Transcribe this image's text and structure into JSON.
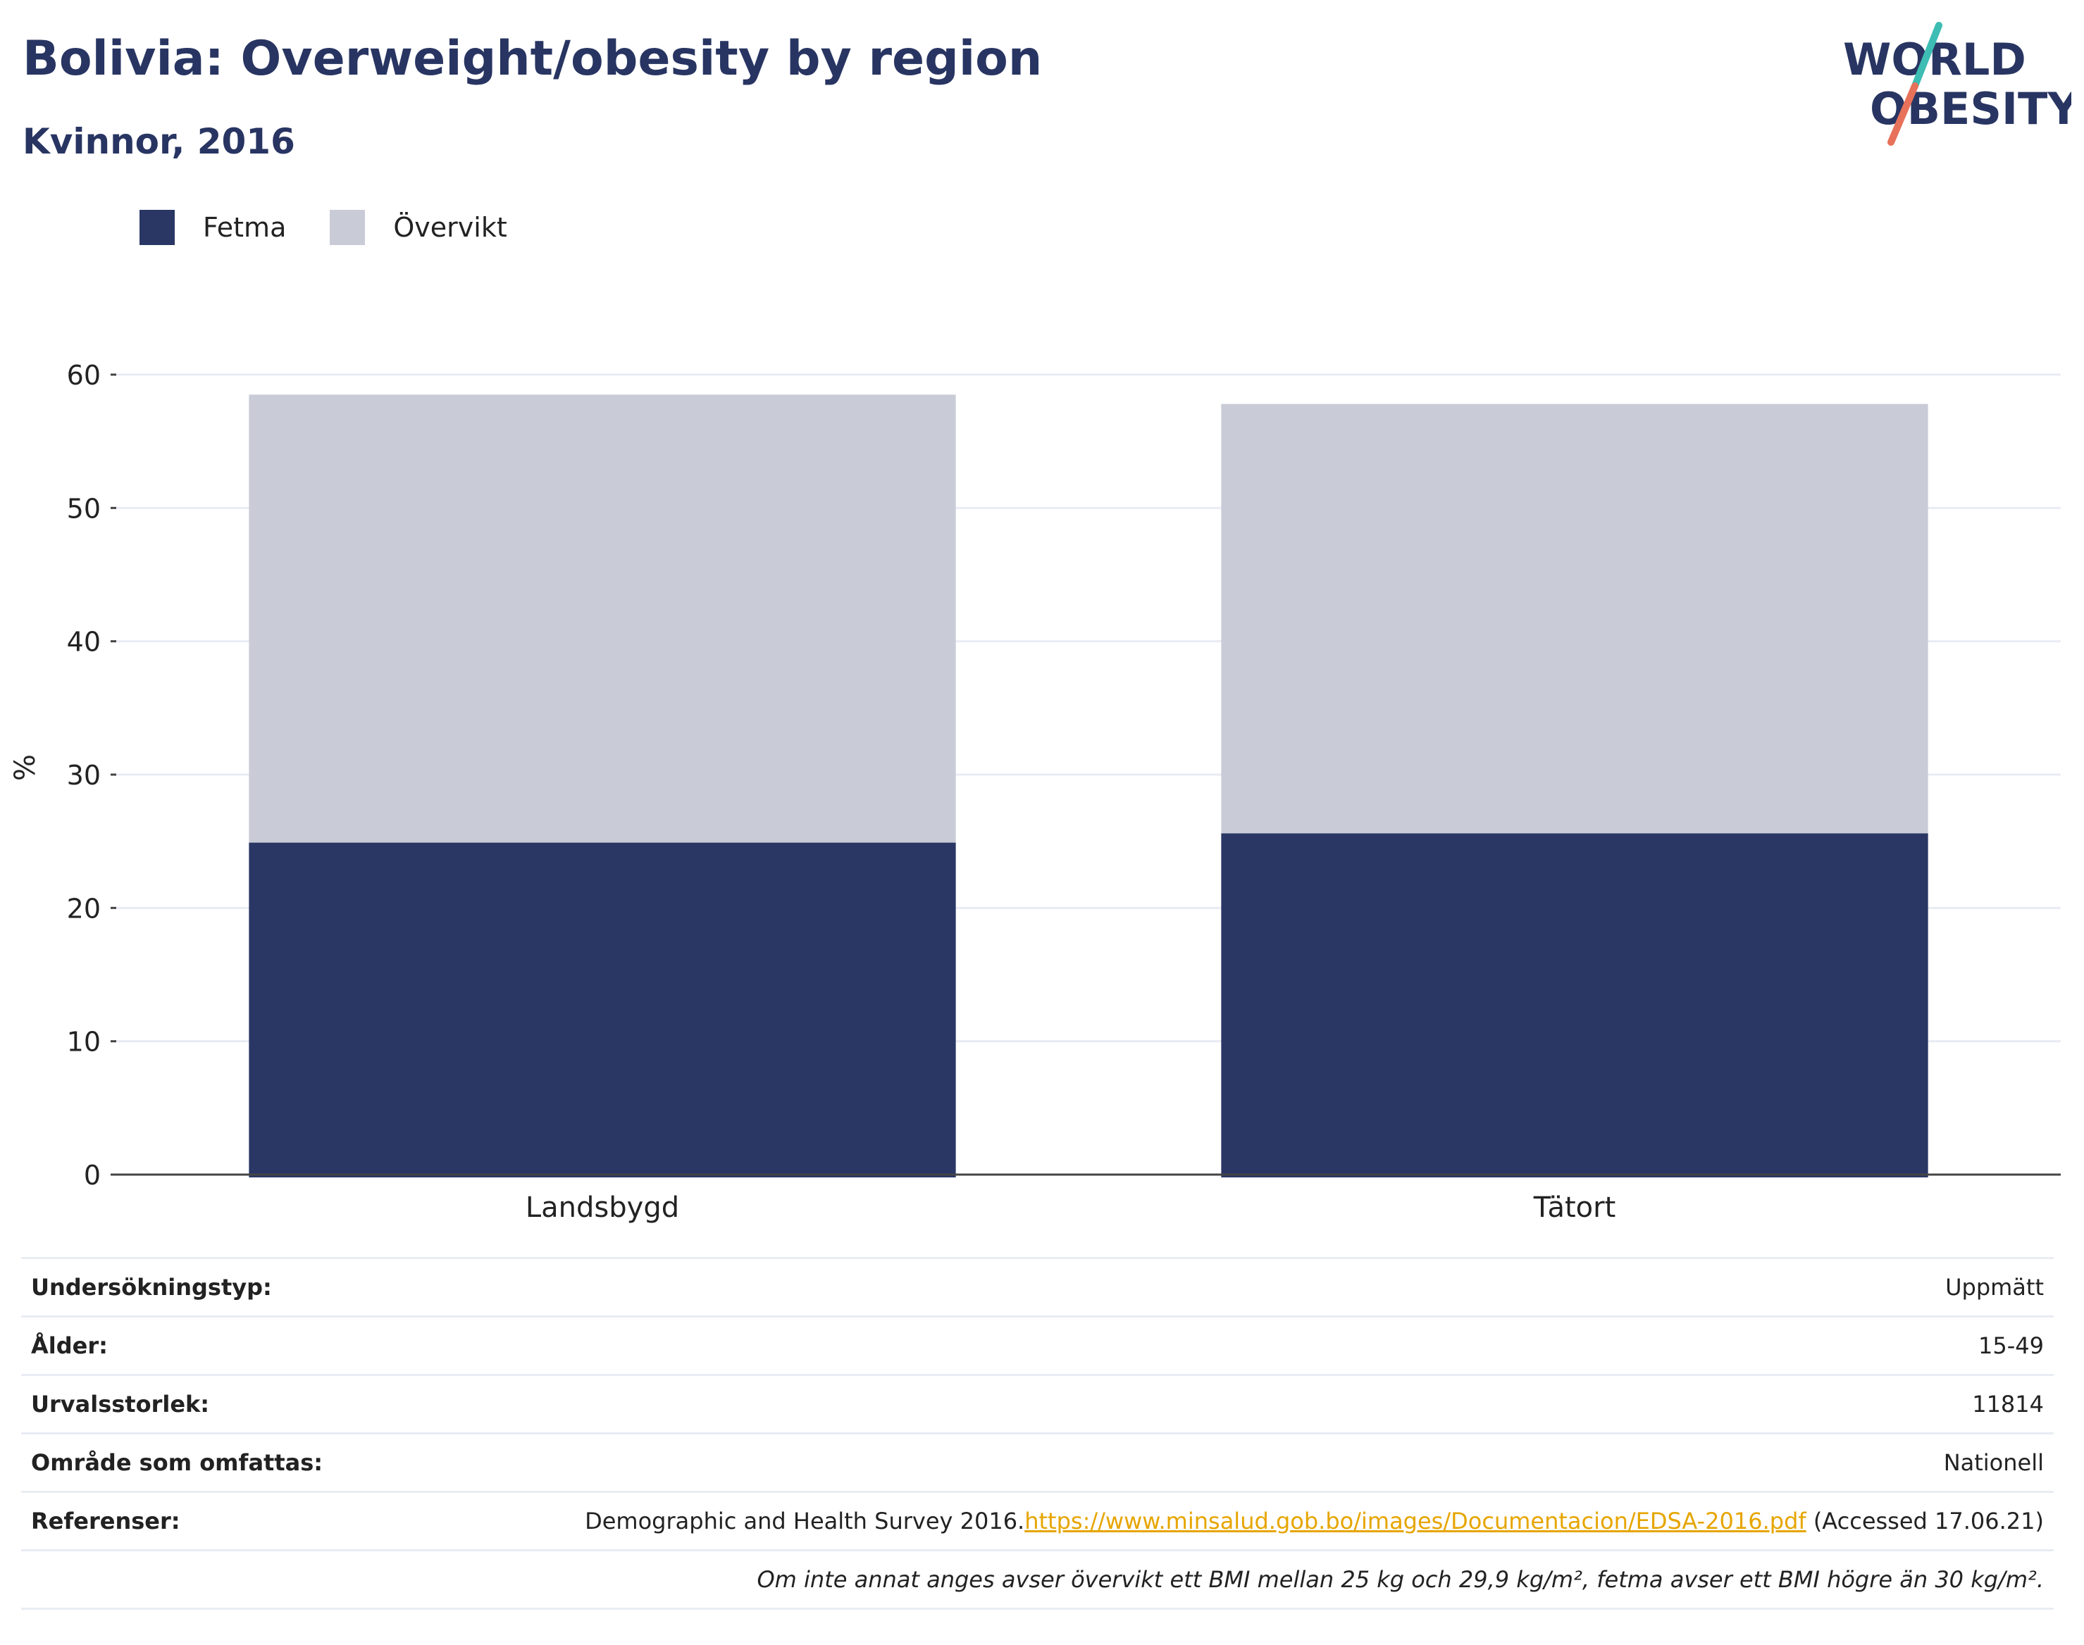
{
  "header": {
    "title": "Bolivia: Overweight/obesity by region",
    "subtitle": "Kvinnor, 2016"
  },
  "logo": {
    "line1": "WORLD",
    "line2": "OBESITY",
    "colors": {
      "text": "#283562",
      "slash_top": "#3dbdb3",
      "slash_bottom": "#e8715a"
    }
  },
  "colors": {
    "fetma": "#2a3664",
    "overvikt": "#c9ccd7",
    "grid": "#e9ecf3",
    "axis": "#444444"
  },
  "legend": [
    {
      "label": "Fetma",
      "color": "#2a3664"
    },
    {
      "label": "Övervikt",
      "color": "#c9ccd7"
    }
  ],
  "chart_data": {
    "type": "bar",
    "stacked": true,
    "categories": [
      "Landsbygd",
      "Tätort"
    ],
    "series": [
      {
        "name": "Fetma",
        "values": [
          24.9,
          25.6
        ],
        "color": "#2a3664"
      },
      {
        "name": "Övervikt",
        "values": [
          33.6,
          32.2
        ],
        "color": "#c9ccd7"
      }
    ],
    "ylabel": "%",
    "ylim": [
      0,
      60
    ],
    "yticks": [
      "0",
      "10",
      "20",
      "30",
      "40",
      "50",
      "60"
    ],
    "grid": true,
    "legend_position": "top-left"
  },
  "info": {
    "rows": [
      {
        "key": "Undersökningstyp:",
        "value": "Uppmätt"
      },
      {
        "key": "Ålder:",
        "value": "15-49"
      },
      {
        "key": "Urvalsstorlek:",
        "value": "11814"
      },
      {
        "key": "Område som omfattas:",
        "value": "Nationell"
      }
    ],
    "references": {
      "key": "Referenser:",
      "text": "Demographic and Health Survey 2016.",
      "link": "https://www.minsalud.gob.bo/images/Documentacion/EDSA-2016.pdf",
      "accessed": " (Accessed 17.06.21)"
    },
    "note": "Om inte annat anges avser övervikt ett BMI mellan 25 kg och 29,9 kg/m², fetma avser ett BMI högre än 30 kg/m²."
  }
}
